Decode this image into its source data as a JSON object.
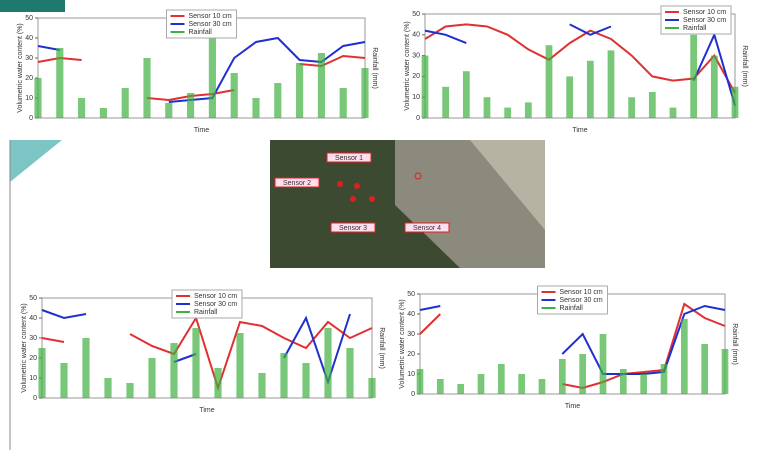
{
  "chart_data": [
    {
      "type": "line",
      "x_label": "Time",
      "y_label": "Volumetric water content (%)",
      "y2_label": "Rainfall (mm)",
      "legend": "upper center",
      "xlim": [
        0,
        15
      ],
      "ylim": [
        0,
        50
      ],
      "yticks": [
        0,
        10,
        20,
        30,
        40,
        50
      ],
      "y2lim": [
        0,
        100
      ],
      "x": [
        0,
        1,
        2,
        3,
        4,
        5,
        6,
        7,
        8,
        9,
        10,
        11,
        12,
        13,
        14,
        15
      ],
      "series": [
        {
          "name": "Sensor 10 cm",
          "color": "#e03030",
          "values": [
            28,
            30,
            29,
            null,
            null,
            10,
            9,
            11,
            12,
            14,
            null,
            null,
            27,
            26,
            31,
            30
          ]
        },
        {
          "name": "Sensor 30 cm",
          "color": "#2030d0",
          "values": [
            36,
            34,
            null,
            null,
            null,
            null,
            8,
            9,
            10,
            30,
            38,
            40,
            29,
            28,
            36,
            38
          ]
        },
        {
          "name": "Rainfall",
          "color": "#40b040",
          "axis": "y2",
          "type": "bar",
          "values": [
            40,
            70,
            20,
            10,
            30,
            60,
            15,
            25,
            80,
            45,
            20,
            35,
            55,
            65,
            30,
            50
          ]
        }
      ]
    },
    {
      "type": "line",
      "x_label": "Time",
      "y_label": "Volumetric water content (%)",
      "y2_label": "Rainfall (mm)",
      "legend": "upper right",
      "xlim": [
        0,
        15
      ],
      "ylim": [
        0,
        50
      ],
      "yticks": [
        0,
        10,
        20,
        30,
        40,
        50
      ],
      "y2lim": [
        0,
        100
      ],
      "x": [
        0,
        1,
        2,
        3,
        4,
        5,
        6,
        7,
        8,
        9,
        10,
        11,
        12,
        13,
        14,
        15
      ],
      "series": [
        {
          "name": "Sensor 10 cm",
          "color": "#e03030",
          "values": [
            38,
            44,
            45,
            44,
            40,
            33,
            28,
            36,
            42,
            38,
            30,
            20,
            18,
            19,
            30,
            12
          ]
        },
        {
          "name": "Sensor 30 cm",
          "color": "#2030d0",
          "values": [
            42,
            40,
            36,
            null,
            null,
            null,
            null,
            45,
            40,
            44,
            null,
            null,
            null,
            18,
            40,
            6
          ]
        },
        {
          "name": "Rainfall",
          "color": "#40b040",
          "axis": "y2",
          "type": "bar",
          "values": [
            60,
            30,
            45,
            20,
            10,
            15,
            70,
            40,
            55,
            65,
            20,
            25,
            10,
            80,
            60,
            30
          ]
        }
      ]
    },
    {
      "type": "line",
      "x_label": "Time",
      "y_label": "Volumetric water content (%)",
      "y2_label": "Rainfall (mm)",
      "legend": "upper center",
      "xlim": [
        0,
        15
      ],
      "ylim": [
        0,
        50
      ],
      "yticks": [
        0,
        10,
        20,
        30,
        40,
        50
      ],
      "y2lim": [
        0,
        100
      ],
      "x": [
        0,
        1,
        2,
        3,
        4,
        5,
        6,
        7,
        8,
        9,
        10,
        11,
        12,
        13,
        14,
        15
      ],
      "series": [
        {
          "name": "Sensor 10 cm",
          "color": "#e03030",
          "values": [
            30,
            28,
            null,
            null,
            32,
            26,
            22,
            40,
            5,
            38,
            36,
            30,
            25,
            38,
            30,
            35
          ]
        },
        {
          "name": "Sensor 30 cm",
          "color": "#2030d0",
          "values": [
            44,
            40,
            42,
            null,
            null,
            null,
            18,
            22,
            null,
            44,
            null,
            20,
            40,
            8,
            42,
            null
          ]
        },
        {
          "name": "Rainfall",
          "color": "#40b040",
          "axis": "y2",
          "type": "bar",
          "values": [
            50,
            35,
            60,
            20,
            15,
            40,
            55,
            70,
            30,
            65,
            25,
            45,
            35,
            70,
            50,
            20
          ]
        }
      ]
    },
    {
      "type": "line",
      "x_label": "Time",
      "y_label": "Volumetric water content (%)",
      "y2_label": "Rainfall (mm)",
      "legend": "upper center",
      "xlim": [
        0,
        15
      ],
      "ylim": [
        0,
        50
      ],
      "yticks": [
        0,
        10,
        20,
        30,
        40,
        50
      ],
      "y2lim": [
        0,
        100
      ],
      "x": [
        0,
        1,
        2,
        3,
        4,
        5,
        6,
        7,
        8,
        9,
        10,
        11,
        12,
        13,
        14,
        15
      ],
      "series": [
        {
          "name": "Sensor 10 cm",
          "color": "#e03030",
          "values": [
            30,
            40,
            null,
            null,
            15,
            null,
            null,
            5,
            3,
            6,
            10,
            11,
            12,
            45,
            38,
            34
          ]
        },
        {
          "name": "Sensor 30 cm",
          "color": "#2030d0",
          "values": [
            42,
            44,
            null,
            null,
            25,
            null,
            null,
            20,
            30,
            10,
            10,
            10,
            11,
            40,
            44,
            42
          ]
        },
        {
          "name": "Rainfall",
          "color": "#40b040",
          "axis": "y2",
          "type": "bar",
          "values": [
            25,
            15,
            10,
            20,
            30,
            20,
            15,
            35,
            40,
            60,
            25,
            20,
            30,
            75,
            50,
            45
          ]
        }
      ]
    }
  ],
  "map": {
    "labels": [
      "Sensor 1",
      "Sensor 2",
      "Sensor 3",
      "Sensor 4"
    ]
  }
}
